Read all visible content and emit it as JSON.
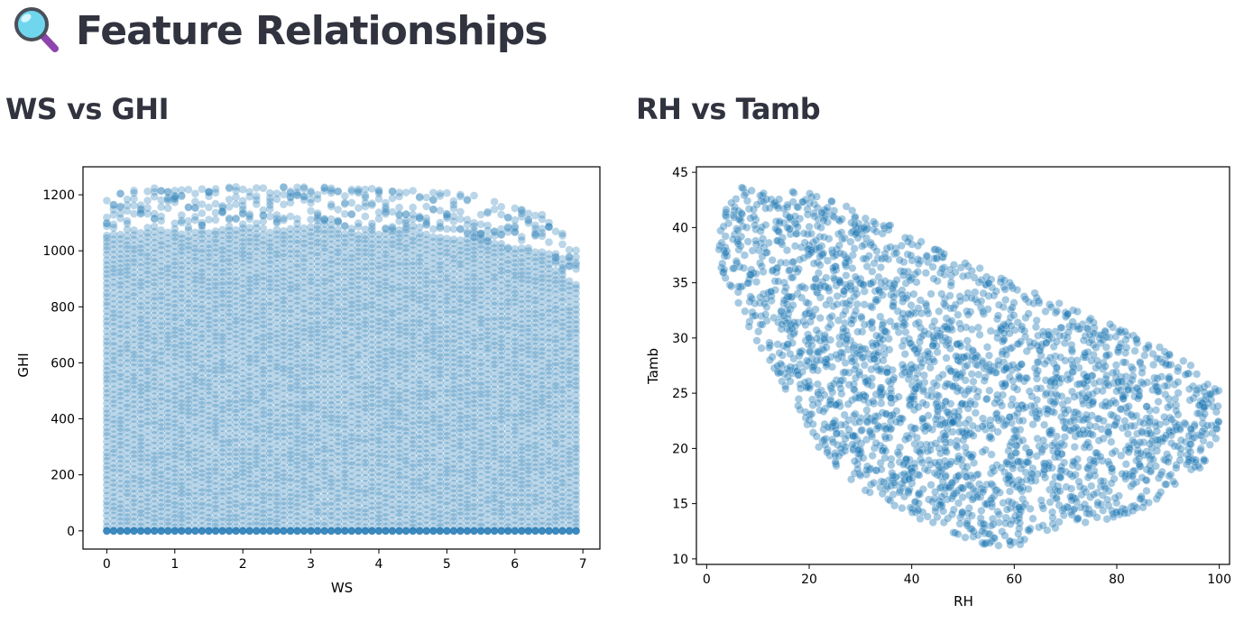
{
  "page": {
    "title": "Feature Relationships",
    "title_icon": "magnifying-glass-icon"
  },
  "headings": {
    "left": "WS vs GHI",
    "right": "RH vs Tamb"
  },
  "colors": {
    "point": "#1f77b4",
    "text": "#31333f",
    "icon_lens": "#5fd0ea",
    "icon_handle": "#9b59b6"
  },
  "chart_data": [
    {
      "type": "scatter",
      "title": "",
      "xlabel": "WS",
      "ylabel": "GHI",
      "xlim": [
        -0.35,
        7.25
      ],
      "ylim": [
        -65,
        1300
      ],
      "xticks": [
        0,
        1,
        2,
        3,
        4,
        5,
        6,
        7
      ],
      "yticks": [
        0,
        200,
        400,
        600,
        800,
        1000,
        1200
      ],
      "grid": false,
      "point_alpha": 0.3,
      "envelope": {
        "x": [
          0,
          0.5,
          1,
          1.5,
          2,
          2.5,
          3,
          3.5,
          4,
          4.5,
          5,
          5.5,
          6,
          6.5,
          6.9
        ],
        "y_max": [
          1210,
          1220,
          1230,
          1225,
          1230,
          1230,
          1230,
          1225,
          1225,
          1215,
          1210,
          1195,
          1160,
          1130,
          1010
        ]
      },
      "y_min": 0
    },
    {
      "type": "scatter",
      "title": "",
      "xlabel": "RH",
      "ylabel": "Tamb",
      "xlim": [
        -2,
        102
      ],
      "ylim": [
        9.5,
        45.5
      ],
      "xticks": [
        0,
        20,
        40,
        60,
        80,
        100
      ],
      "yticks": [
        10,
        15,
        20,
        25,
        30,
        35,
        40,
        45
      ],
      "grid": false,
      "point_alpha": 0.3,
      "region": {
        "x": [
          2,
          4,
          7,
          12,
          18,
          25,
          35,
          45,
          55,
          65,
          75,
          85,
          92,
          96,
          100,
          100,
          97,
          92,
          85,
          78,
          70,
          64,
          60,
          56,
          50,
          42,
          35,
          28,
          22,
          17,
          12,
          8,
          5,
          3,
          2
        ],
        "y": [
          39,
          42,
          43.8,
          43,
          43.5,
          42.5,
          40.5,
          38,
          36,
          34,
          32,
          30,
          28.5,
          27,
          25.5,
          21,
          18.5,
          16.5,
          14.5,
          13.5,
          13,
          12,
          11,
          11,
          12,
          13.5,
          15,
          17,
          20,
          24,
          28,
          31,
          34,
          36,
          37
        ]
      }
    }
  ]
}
